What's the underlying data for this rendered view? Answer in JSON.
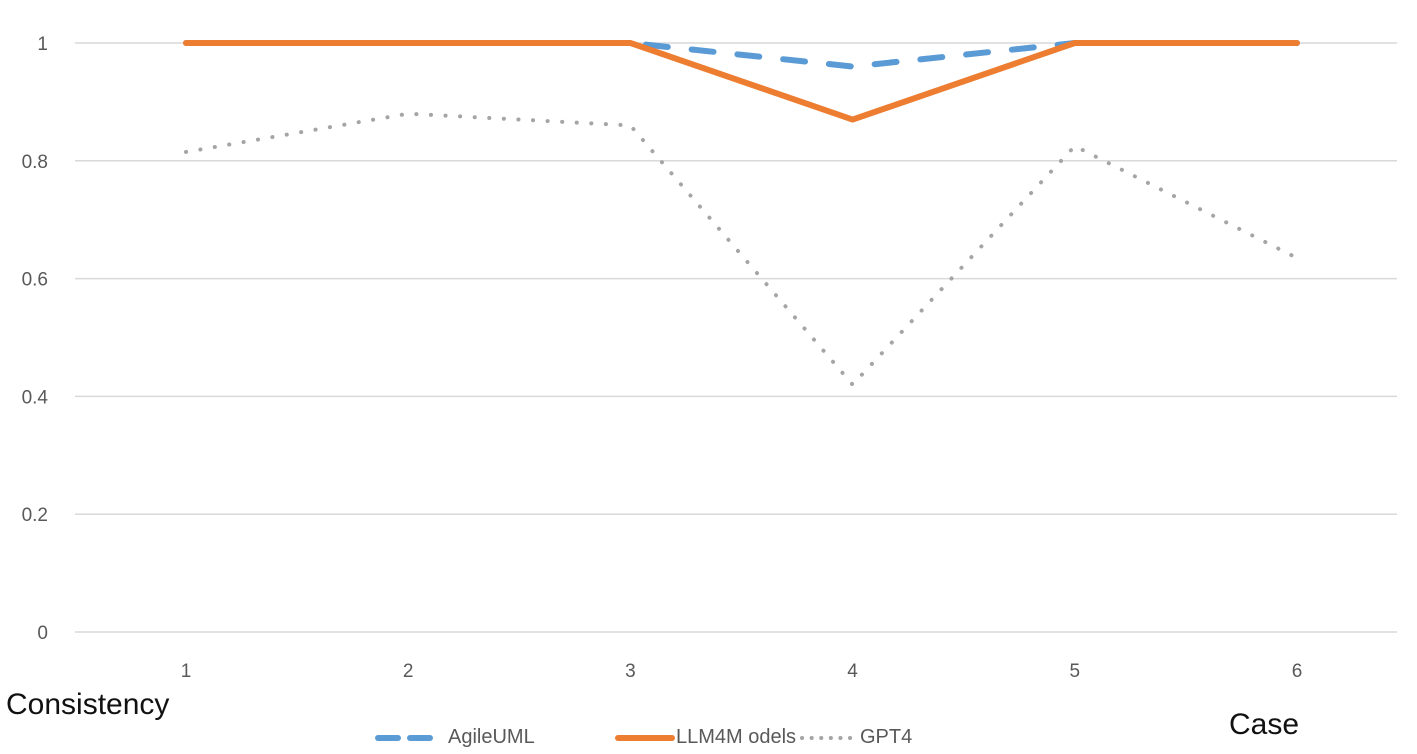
{
  "chart_data": {
    "type": "line",
    "title": "",
    "xlabel": "Case",
    "ylabel": "Consistency",
    "categories": [
      "1",
      "2",
      "3",
      "4",
      "5",
      "6"
    ],
    "ylim": [
      0,
      1
    ],
    "yticks": [
      "0",
      "0.2",
      "0.4",
      "0.6",
      "0.8",
      "1"
    ],
    "grid": true,
    "legend_position": "bottom",
    "series": [
      {
        "name": "AgileUML",
        "style": "dashed",
        "color": "#5b9bd5",
        "values": [
          1,
          1,
          1,
          0.96,
          1,
          1
        ]
      },
      {
        "name": "LLM4Models",
        "style": "solid",
        "color": "#ed7d31",
        "values": [
          1,
          1,
          1,
          0.87,
          1,
          1
        ]
      },
      {
        "name": "GPT4",
        "style": "dotted",
        "color": "#a5a5a5",
        "values": [
          0.815,
          0.88,
          0.86,
          0.42,
          0.825,
          0.635
        ]
      }
    ]
  },
  "legend": {
    "items": [
      {
        "label": "AgileUML"
      },
      {
        "label": "LLM4M odels"
      },
      {
        "label": "GPT4"
      }
    ]
  }
}
